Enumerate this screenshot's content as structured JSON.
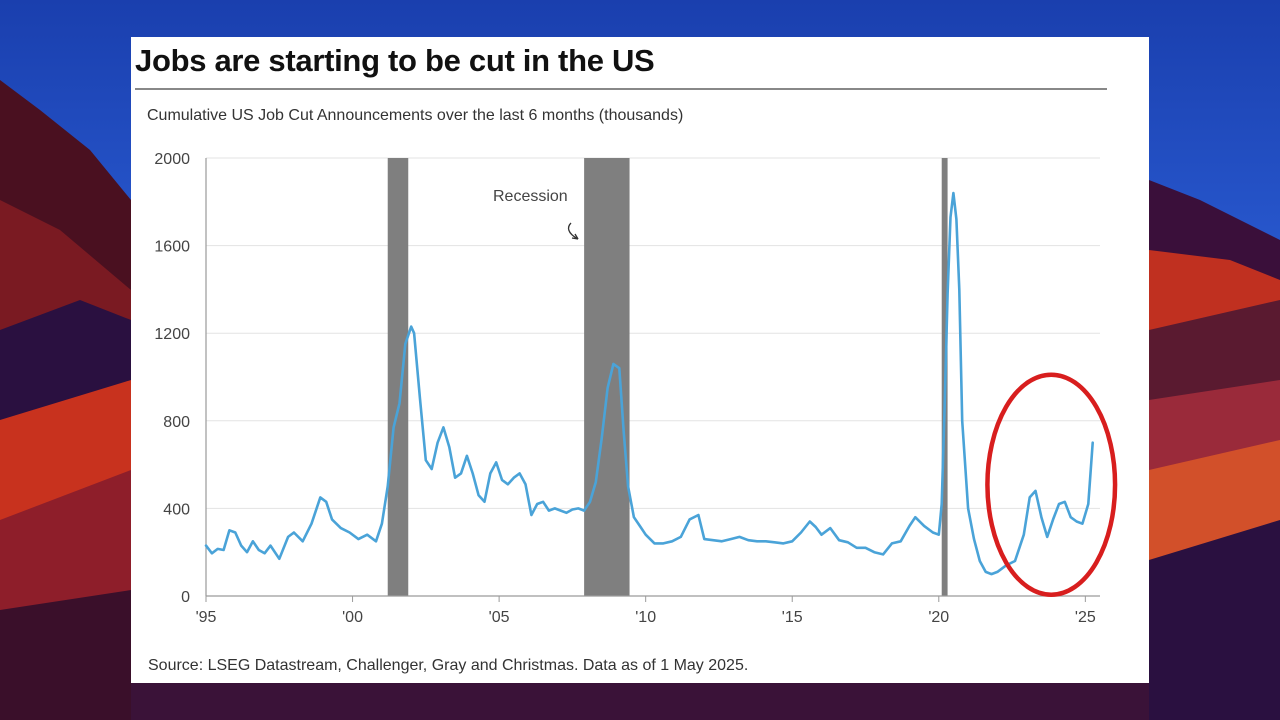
{
  "colors": {
    "line": "#4aa3d8",
    "recession": "#7f7f7f",
    "grid": "#e3e3e3",
    "axis": "#9a9a9a",
    "highlight_circle": "#d81e1e"
  },
  "chart_data": {
    "type": "line",
    "title": "Jobs are starting to be cut in the US",
    "subtitle": "Cumulative US Job Cut Announcements over the last 6 months (thousands)",
    "source": "Source: LSEG Datastream, Challenger, Gray and Christmas. Data as of 1 May 2025.",
    "xlim": [
      1995,
      2025.5
    ],
    "ylim": [
      0,
      2000
    ],
    "y_ticks": [
      0,
      400,
      800,
      1200,
      1600,
      2000
    ],
    "x_ticks": [
      {
        "value": 1995,
        "label": "'95"
      },
      {
        "value": 2000,
        "label": "'00"
      },
      {
        "value": 2005,
        "label": "'05"
      },
      {
        "value": 2010,
        "label": "'10"
      },
      {
        "value": 2015,
        "label": "'15"
      },
      {
        "value": 2020,
        "label": "'20"
      },
      {
        "value": 2025,
        "label": "'25"
      }
    ],
    "grid": "horizontal",
    "recessions": [
      [
        2001.2,
        2001.9
      ],
      [
        2007.9,
        2009.45
      ],
      [
        2020.1,
        2020.3
      ]
    ],
    "annotation": {
      "text": "Recession",
      "points_to": 2007.9
    },
    "highlight": {
      "x_from": 2022.0,
      "x_to": 2025.4,
      "y_center": 490,
      "note": "red circle around recent rise"
    },
    "series": [
      {
        "x": [
          1995.0,
          1995.2,
          1995.4,
          1995.6,
          1995.8,
          1996.0,
          1996.2,
          1996.4,
          1996.6,
          1996.8,
          1997.0,
          1997.2,
          1997.5,
          1997.8,
          1998.0,
          1998.3,
          1998.6,
          1998.9,
          1999.1,
          1999.3,
          1999.6,
          1999.9,
          2000.2,
          2000.5,
          2000.8,
          2001.0,
          2001.2,
          2001.4,
          2001.6,
          2001.8,
          2002.0,
          2002.1,
          2002.3,
          2002.5,
          2002.7,
          2002.9,
          2003.1,
          2003.3,
          2003.5,
          2003.7,
          2003.9,
          2004.1,
          2004.3,
          2004.5,
          2004.7,
          2004.9,
          2005.1,
          2005.3,
          2005.5,
          2005.7,
          2005.9,
          2006.1,
          2006.3,
          2006.5,
          2006.7,
          2006.9,
          2007.1,
          2007.3,
          2007.5,
          2007.7,
          2007.9,
          2008.1,
          2008.3,
          2008.5,
          2008.7,
          2008.9,
          2009.1,
          2009.25,
          2009.4,
          2009.6,
          2009.8,
          2010.0,
          2010.3,
          2010.6,
          2010.9,
          2011.2,
          2011.5,
          2011.8,
          2012.0,
          2012.3,
          2012.6,
          2012.9,
          2013.2,
          2013.5,
          2013.8,
          2014.1,
          2014.4,
          2014.7,
          2015.0,
          2015.3,
          2015.6,
          2015.8,
          2016.0,
          2016.3,
          2016.6,
          2016.9,
          2017.2,
          2017.5,
          2017.8,
          2018.1,
          2018.4,
          2018.7,
          2019.0,
          2019.2,
          2019.5,
          2019.8,
          2020.0,
          2020.1,
          2020.2,
          2020.3,
          2020.4,
          2020.5,
          2020.6,
          2020.7,
          2020.8,
          2021.0,
          2021.2,
          2021.4,
          2021.6,
          2021.8,
          2022.0,
          2022.3,
          2022.6,
          2022.9,
          2023.1,
          2023.3,
          2023.5,
          2023.7,
          2023.9,
          2024.1,
          2024.3,
          2024.5,
          2024.7,
          2024.9,
          2025.1,
          2025.25
        ],
        "y": [
          230,
          195,
          215,
          210,
          300,
          290,
          230,
          200,
          250,
          210,
          195,
          230,
          170,
          270,
          290,
          250,
          330,
          450,
          430,
          350,
          310,
          290,
          260,
          280,
          250,
          330,
          500,
          770,
          880,
          1150,
          1230,
          1200,
          900,
          620,
          580,
          700,
          770,
          680,
          540,
          560,
          640,
          560,
          460,
          430,
          560,
          610,
          530,
          510,
          540,
          560,
          510,
          370,
          420,
          430,
          390,
          400,
          390,
          380,
          395,
          400,
          390,
          430,
          520,
          720,
          950,
          1060,
          1040,
          750,
          500,
          360,
          320,
          280,
          240,
          240,
          250,
          270,
          350,
          370,
          260,
          255,
          250,
          260,
          270,
          255,
          250,
          250,
          245,
          240,
          250,
          290,
          340,
          315,
          280,
          310,
          255,
          245,
          220,
          220,
          200,
          190,
          240,
          250,
          320,
          360,
          320,
          290,
          280,
          420,
          860,
          1380,
          1730,
          1840,
          1720,
          1400,
          800,
          400,
          260,
          160,
          110,
          100,
          110,
          140,
          160,
          280,
          450,
          480,
          360,
          270,
          350,
          420,
          430,
          360,
          340,
          330,
          420,
          700
        ]
      }
    ]
  }
}
